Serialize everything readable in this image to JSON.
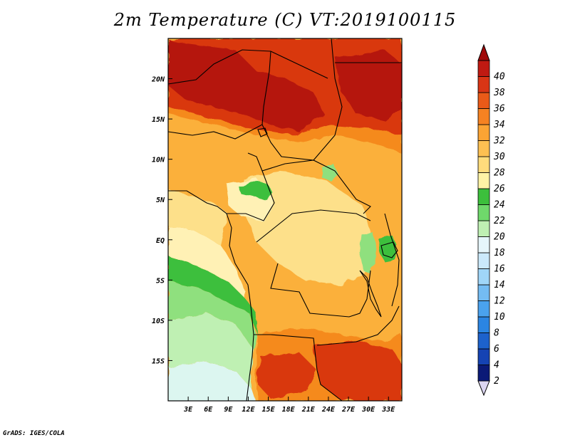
{
  "title": "2m Temperature (C) VT:2019100115",
  "credit": "GrADS: IGES/COLA",
  "map": {
    "lon_range": [
      0,
      35
    ],
    "lat_range": [
      -20,
      25
    ],
    "x_ticks": [
      "3E",
      "6E",
      "9E",
      "12E",
      "15E",
      "18E",
      "21E",
      "24E",
      "27E",
      "30E",
      "33E"
    ],
    "x_tick_values": [
      3,
      6,
      9,
      12,
      15,
      18,
      21,
      24,
      27,
      30,
      33
    ],
    "y_ticks": [
      "20N",
      "15N",
      "10N",
      "5N",
      "EQ",
      "5S",
      "10S",
      "15S"
    ],
    "y_tick_values": [
      20,
      15,
      10,
      5,
      0,
      -5,
      -10,
      -15
    ]
  },
  "colorbar": {
    "labels": [
      "2",
      "4",
      "6",
      "8",
      "10",
      "12",
      "14",
      "16",
      "18",
      "20",
      "22",
      "24",
      "26",
      "28",
      "30",
      "32",
      "34",
      "36",
      "38",
      "40"
    ],
    "colors": [
      "#0b1a77",
      "#1543b3",
      "#1d62cc",
      "#2b85e2",
      "#4aa2ee",
      "#74bcf3",
      "#a0d6f8",
      "#cbe9fb",
      "#e6f6fb",
      "#bff0b3",
      "#6fd86b",
      "#3cbf3c",
      "#fff3a6",
      "#ffdc7c",
      "#fdc052",
      "#fba434",
      "#f58222",
      "#ea5a18",
      "#d93515",
      "#c01a12",
      "#a00a0a"
    ],
    "under_color": "#dcd6f2",
    "over_color": "#a00a0a"
  },
  "field_colors": {
    "sahara_hot": "#b5140f",
    "sahel_hot": "#d9380f",
    "warm_orange": "#f58a1f",
    "light_orange": "#fbb03b",
    "pale_yellow": "#fde08a",
    "cream": "#fff1b5",
    "green": "#3cbf3c",
    "light_green": "#8fe07e",
    "pale_green": "#bff0b3",
    "very_pale": "#dcf6f0"
  }
}
